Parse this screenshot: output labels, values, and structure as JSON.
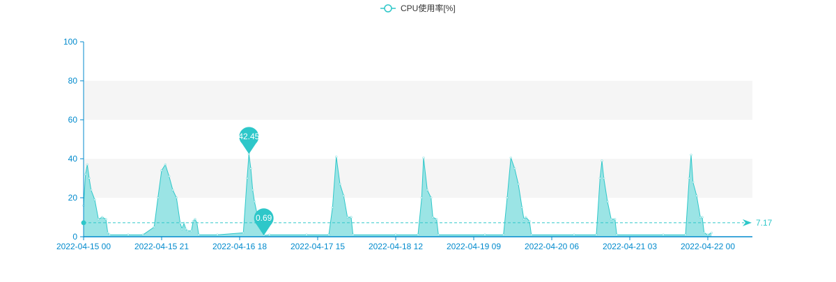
{
  "colors": {
    "series": "#2ec7c9",
    "area": "#96e3e4",
    "axis": "#008acd",
    "band": "#f5f5f5",
    "legend_text": "#333333"
  },
  "chart_data": {
    "type": "area",
    "x_axis_type": "time",
    "xlim": [
      "2022-04-15 00:00",
      "2022-04-22 12:00"
    ],
    "ylim": [
      0,
      100
    ],
    "y_ticks": [
      0,
      20,
      40,
      60,
      80,
      100
    ],
    "x_tick_labels": [
      "2022-04-15 00",
      "2022-04-15 21",
      "2022-04-16 18",
      "2022-04-17 15",
      "2022-04-18 12",
      "2022-04-19 09",
      "2022-04-20 06",
      "2022-04-21 03",
      "2022-04-22 00"
    ],
    "split_area_bands": true,
    "legend": {
      "position": "top-center",
      "icon": "empty-circle"
    },
    "series": [
      {
        "name": "CPU使用率[%]",
        "points": [
          [
            "2022-04-15 00:00",
            16
          ],
          [
            "2022-04-15 00:30",
            32
          ],
          [
            "2022-04-15 01:00",
            37
          ],
          [
            "2022-04-15 01:30",
            30
          ],
          [
            "2022-04-15 02:00",
            24
          ],
          [
            "2022-04-15 03:00",
            19
          ],
          [
            "2022-04-15 04:00",
            9
          ],
          [
            "2022-04-15 05:00",
            10
          ],
          [
            "2022-04-15 06:00",
            9
          ],
          [
            "2022-04-15 06:30",
            2
          ],
          [
            "2022-04-15 07:00",
            1
          ],
          [
            "2022-04-15 12:00",
            1
          ],
          [
            "2022-04-15 16:00",
            1
          ],
          [
            "2022-04-15 19:00",
            5
          ],
          [
            "2022-04-15 20:00",
            20
          ],
          [
            "2022-04-15 21:00",
            34
          ],
          [
            "2022-04-15 22:00",
            37
          ],
          [
            "2022-04-15 23:00",
            31
          ],
          [
            "2022-04-16 00:00",
            24
          ],
          [
            "2022-04-16 01:00",
            20
          ],
          [
            "2022-04-16 02:00",
            7
          ],
          [
            "2022-04-16 02:30",
            4
          ],
          [
            "2022-04-16 03:00",
            7
          ],
          [
            "2022-04-16 03:30",
            4
          ],
          [
            "2022-04-16 04:00",
            3
          ],
          [
            "2022-04-16 05:00",
            3
          ],
          [
            "2022-04-16 05:30",
            8
          ],
          [
            "2022-04-16 06:00",
            9
          ],
          [
            "2022-04-16 06:30",
            7
          ],
          [
            "2022-04-16 07:00",
            1
          ],
          [
            "2022-04-16 12:00",
            1
          ],
          [
            "2022-04-16 19:00",
            2
          ],
          [
            "2022-04-16 20:00",
            30
          ],
          [
            "2022-04-16 20:30",
            42.45
          ],
          [
            "2022-04-16 21:00",
            35
          ],
          [
            "2022-04-16 21:30",
            24
          ],
          [
            "2022-04-16 22:00",
            18
          ],
          [
            "2022-04-16 23:00",
            9
          ],
          [
            "2022-04-16 23:30",
            11
          ],
          [
            "2022-04-17 00:00",
            3
          ],
          [
            "2022-04-17 00:30",
            0.69
          ],
          [
            "2022-04-17 02:00",
            1
          ],
          [
            "2022-04-17 12:00",
            1
          ],
          [
            "2022-04-17 18:00",
            1
          ],
          [
            "2022-04-17 19:00",
            15
          ],
          [
            "2022-04-17 20:00",
            41
          ],
          [
            "2022-04-17 21:00",
            27
          ],
          [
            "2022-04-17 22:00",
            21
          ],
          [
            "2022-04-17 23:00",
            10
          ],
          [
            "2022-04-18 00:00",
            10
          ],
          [
            "2022-04-18 00:30",
            1
          ],
          [
            "2022-04-18 12:00",
            1
          ],
          [
            "2022-04-18 18:00",
            1
          ],
          [
            "2022-04-18 19:00",
            20
          ],
          [
            "2022-04-18 19:30",
            40.5
          ],
          [
            "2022-04-18 20:30",
            24
          ],
          [
            "2022-04-18 21:30",
            20
          ],
          [
            "2022-04-18 22:00",
            10
          ],
          [
            "2022-04-18 23:00",
            9
          ],
          [
            "2022-04-18 23:30",
            1
          ],
          [
            "2022-04-19 12:00",
            1
          ],
          [
            "2022-04-19 17:00",
            1
          ],
          [
            "2022-04-19 18:00",
            20
          ],
          [
            "2022-04-19 19:00",
            40.5
          ],
          [
            "2022-04-19 20:00",
            35
          ],
          [
            "2022-04-19 21:00",
            27
          ],
          [
            "2022-04-19 22:00",
            15
          ],
          [
            "2022-04-19 22:30",
            9
          ],
          [
            "2022-04-19 23:00",
            10
          ],
          [
            "2022-04-20 00:00",
            8
          ],
          [
            "2022-04-20 00:30",
            1
          ],
          [
            "2022-04-20 12:00",
            1
          ],
          [
            "2022-04-20 18:00",
            1
          ],
          [
            "2022-04-20 19:00",
            30
          ],
          [
            "2022-04-20 19:30",
            39
          ],
          [
            "2022-04-20 20:00",
            30
          ],
          [
            "2022-04-20 21:00",
            18
          ],
          [
            "2022-04-20 22:00",
            9
          ],
          [
            "2022-04-20 23:00",
            9
          ],
          [
            "2022-04-20 23:30",
            1
          ],
          [
            "2022-04-21 12:00",
            1
          ],
          [
            "2022-04-21 18:00",
            1
          ],
          [
            "2022-04-21 19:00",
            30
          ],
          [
            "2022-04-21 19:30",
            42
          ],
          [
            "2022-04-21 20:00",
            28
          ],
          [
            "2022-04-21 21:00",
            21
          ],
          [
            "2022-04-21 22:00",
            10
          ],
          [
            "2022-04-21 22:30",
            10
          ],
          [
            "2022-04-21 23:00",
            2
          ],
          [
            "2022-04-22 00:00",
            1
          ],
          [
            "2022-04-22 01:00",
            2
          ]
        ]
      }
    ],
    "mark_points": [
      {
        "label": "42.45",
        "x": "2022-04-16 20:30",
        "y": 42.45
      },
      {
        "label": "0.69",
        "x": "2022-04-17 00:30",
        "y": 0.69
      }
    ],
    "mark_line": {
      "label": "7.17",
      "y": 7.17
    }
  }
}
